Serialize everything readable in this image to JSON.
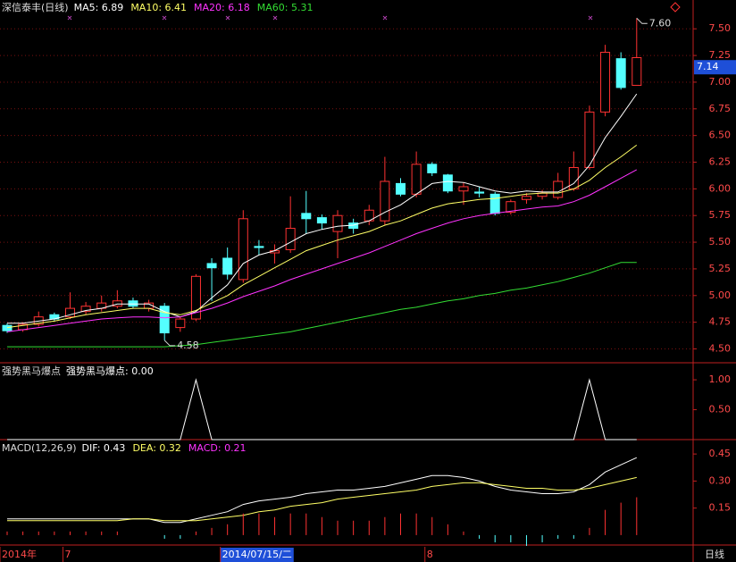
{
  "chart_data": [
    {
      "type": "candlestick",
      "title": "深信泰丰(日线)",
      "categories": [
        "2014年",
        null,
        null,
        null,
        "7",
        null,
        null,
        null,
        null,
        null,
        null,
        null,
        null,
        null,
        "2014/07/15/二",
        null,
        null,
        null,
        null,
        null,
        null,
        null,
        null,
        null,
        null,
        null,
        null,
        "8",
        null,
        null,
        null,
        null,
        null,
        null,
        null,
        null,
        null,
        null,
        null,
        null,
        null
      ],
      "candles": [
        [
          4.72,
          4.74,
          4.65,
          4.67
        ],
        [
          4.68,
          4.75,
          4.66,
          4.73
        ],
        [
          4.73,
          4.85,
          4.71,
          4.8
        ],
        [
          4.82,
          4.84,
          4.76,
          4.78
        ],
        [
          4.8,
          5.03,
          4.78,
          4.88
        ],
        [
          4.85,
          4.94,
          4.82,
          4.9
        ],
        [
          4.88,
          5.0,
          4.85,
          4.93
        ],
        [
          4.9,
          5.05,
          4.88,
          4.95
        ],
        [
          4.95,
          4.98,
          4.88,
          4.9
        ],
        [
          4.88,
          4.96,
          4.85,
          4.93
        ],
        [
          4.9,
          4.93,
          4.58,
          4.65
        ],
        [
          4.7,
          4.8,
          4.66,
          4.78
        ],
        [
          4.78,
          5.2,
          4.76,
          5.18
        ],
        [
          5.3,
          5.35,
          4.95,
          5.26
        ],
        [
          5.35,
          5.45,
          5.15,
          5.2
        ],
        [
          5.15,
          5.8,
          5.12,
          5.72
        ],
        [
          5.46,
          5.52,
          5.38,
          5.45
        ],
        [
          5.4,
          5.48,
          5.3,
          5.42
        ],
        [
          5.43,
          5.93,
          5.4,
          5.63
        ],
        [
          5.77,
          5.98,
          5.58,
          5.72
        ],
        [
          5.73,
          5.76,
          5.62,
          5.68
        ],
        [
          5.6,
          5.8,
          5.35,
          5.75
        ],
        [
          5.68,
          5.72,
          5.58,
          5.63
        ],
        [
          5.7,
          5.85,
          5.66,
          5.8
        ],
        [
          5.7,
          6.3,
          5.66,
          6.07
        ],
        [
          6.05,
          6.1,
          5.93,
          5.95
        ],
        [
          5.95,
          6.35,
          5.92,
          6.23
        ],
        [
          6.23,
          6.25,
          6.12,
          6.15
        ],
        [
          6.13,
          6.14,
          5.96,
          5.98
        ],
        [
          5.98,
          6.06,
          5.85,
          6.02
        ],
        [
          5.97,
          6.02,
          5.92,
          5.96
        ],
        [
          5.95,
          5.97,
          5.75,
          5.77
        ],
        [
          5.78,
          5.9,
          5.76,
          5.88
        ],
        [
          5.9,
          5.96,
          5.86,
          5.93
        ],
        [
          5.93,
          5.99,
          5.9,
          5.96
        ],
        [
          5.92,
          6.15,
          5.9,
          6.07
        ],
        [
          6.0,
          6.35,
          5.98,
          6.2
        ],
        [
          6.2,
          6.78,
          6.18,
          6.72
        ],
        [
          6.72,
          7.35,
          6.68,
          7.28
        ],
        [
          7.22,
          7.28,
          6.93,
          6.95
        ],
        [
          6.97,
          7.6,
          6.97,
          7.23
        ]
      ],
      "up_color": "#ff3232",
      "down_color": "#54ffff",
      "series": [
        {
          "name": "MA5: 6.89",
          "color": "#ffffff",
          "values": [
            4.74,
            4.74,
            4.76,
            4.78,
            4.82,
            4.86,
            4.88,
            4.92,
            4.92,
            4.92,
            4.85,
            4.8,
            4.85,
            4.98,
            5.1,
            5.3,
            5.38,
            5.42,
            5.5,
            5.58,
            5.62,
            5.65,
            5.66,
            5.7,
            5.78,
            5.85,
            5.95,
            6.05,
            6.07,
            6.06,
            6.02,
            5.98,
            5.96,
            5.98,
            5.97,
            5.97,
            6.05,
            6.22,
            6.48,
            6.68,
            6.89
          ]
        },
        {
          "name": "MA10: 6.41",
          "color": "#ffff66",
          "values": [
            4.7,
            4.72,
            4.74,
            4.76,
            4.79,
            4.82,
            4.84,
            4.86,
            4.88,
            4.88,
            4.84,
            4.82,
            4.86,
            4.93,
            5.0,
            5.1,
            5.18,
            5.26,
            5.34,
            5.42,
            5.47,
            5.52,
            5.56,
            5.6,
            5.66,
            5.7,
            5.76,
            5.82,
            5.86,
            5.88,
            5.9,
            5.91,
            5.93,
            5.95,
            5.96,
            5.96,
            6.0,
            6.08,
            6.2,
            6.3,
            6.41
          ]
        },
        {
          "name": "MA20: 6.18",
          "color": "#ff33ff",
          "values": [
            4.66,
            4.68,
            4.7,
            4.72,
            4.74,
            4.76,
            4.78,
            4.79,
            4.8,
            4.8,
            4.79,
            4.8,
            4.84,
            4.88,
            4.93,
            4.99,
            5.04,
            5.09,
            5.15,
            5.2,
            5.25,
            5.3,
            5.35,
            5.4,
            5.46,
            5.52,
            5.58,
            5.63,
            5.68,
            5.72,
            5.75,
            5.77,
            5.79,
            5.81,
            5.83,
            5.84,
            5.88,
            5.94,
            6.02,
            6.1,
            6.18
          ]
        },
        {
          "name": "MA60: 5.31",
          "color": "#33dd33",
          "values": [
            4.52,
            4.52,
            4.52,
            4.52,
            4.52,
            4.52,
            4.52,
            4.52,
            4.52,
            4.52,
            4.52,
            4.53,
            4.54,
            4.56,
            4.58,
            4.6,
            4.62,
            4.64,
            4.66,
            4.69,
            4.72,
            4.75,
            4.78,
            4.81,
            4.84,
            4.87,
            4.89,
            4.92,
            4.95,
            4.97,
            5.0,
            5.02,
            5.05,
            5.07,
            5.1,
            5.13,
            5.17,
            5.21,
            5.26,
            5.31,
            5.31
          ]
        }
      ],
      "ylim": [
        4.37,
        7.77
      ],
      "yticks": [
        {
          "value": 4.5,
          "label": "4.50"
        },
        {
          "value": 4.75,
          "label": "4.75"
        },
        {
          "value": 5,
          "label": "5.00"
        },
        {
          "value": 5.25,
          "label": "5.25"
        },
        {
          "value": 5.5,
          "label": "5.50"
        },
        {
          "value": 5.75,
          "label": "5.75"
        },
        {
          "value": 6,
          "label": "6.00"
        },
        {
          "value": 6.25,
          "label": "6.25"
        },
        {
          "value": 6.5,
          "label": "6.50"
        },
        {
          "value": 6.75,
          "label": "6.75"
        },
        {
          "value": 7,
          "label": "7.00"
        },
        {
          "value": 7.25,
          "label": "7.25"
        },
        {
          "value": 7.5,
          "label": "7.50"
        }
      ],
      "grid": true,
      "annotations": [
        {
          "value": 7.6,
          "label": "7.60"
        },
        {
          "value": 4.58,
          "label": "4.58"
        }
      ],
      "cursor_price": {
        "value": 7.14,
        "label": "7.14"
      },
      "period_label": "日线"
    },
    {
      "type": "line",
      "title": "强势黑马爆点",
      "series": [
        {
          "name": "强势黑马爆点: 0.00",
          "color": "#ffffff",
          "values": [
            0,
            0,
            0,
            0,
            0,
            0,
            0,
            0,
            0,
            0,
            0,
            0,
            1,
            0,
            0,
            0,
            0,
            0,
            0,
            0,
            0,
            0,
            0,
            0,
            0,
            0,
            0,
            0,
            0,
            0,
            0,
            0,
            0,
            0,
            0,
            0,
            0,
            1,
            0,
            0,
            0
          ]
        }
      ],
      "ylim": [
        0,
        1.27
      ],
      "yticks": [
        {
          "value": 0.5,
          "label": "0.50"
        },
        {
          "value": 1,
          "label": "1.00"
        }
      ]
    },
    {
      "type": "macd",
      "title": "MACD(12,26,9)",
      "series": [
        {
          "name": "DIF: 0.43",
          "color": "#ffffff",
          "values": [
            0.09,
            0.09,
            0.09,
            0.09,
            0.09,
            0.09,
            0.09,
            0.09,
            0.09,
            0.09,
            0.07,
            0.07,
            0.09,
            0.11,
            0.13,
            0.17,
            0.19,
            0.2,
            0.21,
            0.23,
            0.24,
            0.25,
            0.25,
            0.26,
            0.27,
            0.29,
            0.31,
            0.33,
            0.33,
            0.32,
            0.3,
            0.27,
            0.25,
            0.24,
            0.23,
            0.23,
            0.24,
            0.28,
            0.35,
            0.39,
            0.43
          ]
        },
        {
          "name": "DEA: 0.32",
          "color": "#ffff66",
          "values": [
            0.08,
            0.08,
            0.08,
            0.08,
            0.08,
            0.08,
            0.08,
            0.08,
            0.09,
            0.09,
            0.08,
            0.08,
            0.08,
            0.09,
            0.1,
            0.11,
            0.13,
            0.14,
            0.16,
            0.17,
            0.18,
            0.2,
            0.21,
            0.22,
            0.23,
            0.24,
            0.25,
            0.27,
            0.28,
            0.29,
            0.29,
            0.28,
            0.27,
            0.26,
            0.26,
            0.25,
            0.25,
            0.26,
            0.28,
            0.3,
            0.32
          ]
        },
        {
          "name": "MACD: 0.21",
          "color": "#ff33ff",
          "bars": true,
          "values": [
            0.02,
            0.02,
            0.02,
            0.02,
            0.02,
            0.02,
            0.02,
            0.02,
            0,
            0,
            -0.02,
            -0.02,
            0.02,
            0.04,
            0.06,
            0.12,
            0.12,
            0.1,
            0.12,
            0.12,
            0.1,
            0.08,
            0.08,
            0.08,
            0.1,
            0.12,
            0.12,
            0.1,
            0.06,
            0.02,
            -0.02,
            -0.04,
            -0.04,
            -0.06,
            -0.04,
            -0.02,
            -0.02,
            0.04,
            0.14,
            0.18,
            0.21
          ]
        }
      ],
      "up_color": "#ff3232",
      "down_color": "#54ffff",
      "ylim": [
        -0.055,
        0.525
      ],
      "yticks": [
        {
          "value": 0.15,
          "label": "0.15"
        },
        {
          "value": 0.3,
          "label": "0.30"
        },
        {
          "value": 0.45,
          "label": "0.45"
        }
      ]
    }
  ]
}
